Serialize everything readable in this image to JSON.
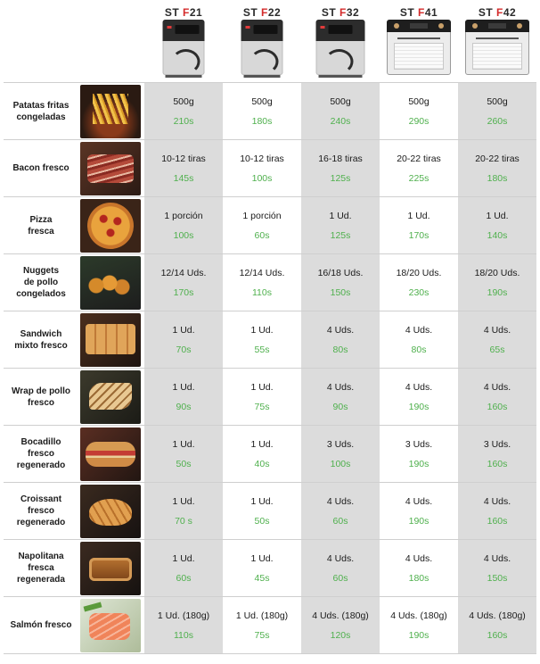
{
  "models": [
    {
      "prefix": "ST ",
      "mark": "F",
      "suffix": "21",
      "type": "dark"
    },
    {
      "prefix": "ST ",
      "mark": "F",
      "suffix": "22",
      "type": "dark"
    },
    {
      "prefix": "ST ",
      "mark": "F",
      "suffix": "32",
      "type": "dark"
    },
    {
      "prefix": "ST ",
      "mark": "F",
      "suffix": "41",
      "type": "steel"
    },
    {
      "prefix": "ST ",
      "mark": "F",
      "suffix": "42",
      "type": "steel"
    }
  ],
  "rows": [
    {
      "label": [
        "Patatas fritas",
        "congeladas"
      ],
      "image": "fries-photo",
      "cells": [
        [
          "500g",
          "210s"
        ],
        [
          "500g",
          "180s"
        ],
        [
          "500g",
          "240s"
        ],
        [
          "500g",
          "290s"
        ],
        [
          "500g",
          "260s"
        ]
      ]
    },
    {
      "label": [
        "Bacon fresco"
      ],
      "image": "bacon-photo",
      "cells": [
        [
          "10-12 tiras",
          "145s"
        ],
        [
          "10-12 tiras",
          "100s"
        ],
        [
          "16-18 tiras",
          "125s"
        ],
        [
          "20-22 tiras",
          "225s"
        ],
        [
          "20-22 tiras",
          "180s"
        ]
      ]
    },
    {
      "label": [
        "Pizza",
        "fresca"
      ],
      "image": "pizza-photo",
      "cells": [
        [
          "1 porción",
          "100s"
        ],
        [
          "1 porción",
          "60s"
        ],
        [
          "1 Ud.",
          "125s"
        ],
        [
          "1 Ud.",
          "170s"
        ],
        [
          "1 Ud.",
          "140s"
        ]
      ]
    },
    {
      "label": [
        "Nuggets",
        "de pollo",
        "congelados"
      ],
      "image": "nuggets-photo",
      "cells": [
        [
          "12/14 Uds.",
          "170s"
        ],
        [
          "12/14 Uds.",
          "110s"
        ],
        [
          "16/18 Uds.",
          "150s"
        ],
        [
          "18/20 Uds.",
          "230s"
        ],
        [
          "18/20 Uds.",
          "190s"
        ]
      ]
    },
    {
      "label": [
        "Sandwich",
        "mixto fresco"
      ],
      "image": "sandwich-photo",
      "cells": [
        [
          "1 Ud.",
          "70s"
        ],
        [
          "1 Ud.",
          "55s"
        ],
        [
          "4 Uds.",
          "80s"
        ],
        [
          "4 Uds.",
          "80s"
        ],
        [
          "4 Uds.",
          "65s"
        ]
      ]
    },
    {
      "label": [
        "Wrap de pollo",
        "fresco"
      ],
      "image": "wrap-photo",
      "cells": [
        [
          "1 Ud.",
          "90s"
        ],
        [
          "1 Ud.",
          "75s"
        ],
        [
          "4 Uds.",
          "90s"
        ],
        [
          "4 Uds.",
          "190s"
        ],
        [
          "4 Uds.",
          "160s"
        ]
      ]
    },
    {
      "label": [
        "Bocadillo",
        "fresco",
        "regenerado"
      ],
      "image": "bocadillo-photo",
      "cells": [
        [
          "1 Ud.",
          "50s"
        ],
        [
          "1 Ud.",
          "40s"
        ],
        [
          "3 Uds.",
          "100s"
        ],
        [
          "3 Uds.",
          "190s"
        ],
        [
          "3 Uds.",
          "160s"
        ]
      ]
    },
    {
      "label": [
        "Croissant",
        "fresco",
        "regenerado"
      ],
      "image": "croissant-photo",
      "cells": [
        [
          "1 Ud.",
          "70 s"
        ],
        [
          "1 Ud.",
          "50s"
        ],
        [
          "4 Uds.",
          "60s"
        ],
        [
          "4 Uds.",
          "190s"
        ],
        [
          "4 Uds.",
          "160s"
        ]
      ]
    },
    {
      "label": [
        "Napolitana",
        "fresca",
        "regenerada"
      ],
      "image": "napolitana-photo",
      "cells": [
        [
          "1 Ud.",
          "60s"
        ],
        [
          "1 Ud.",
          "45s"
        ],
        [
          "4 Uds.",
          "60s"
        ],
        [
          "4 Uds.",
          "180s"
        ],
        [
          "4 Uds.",
          "150s"
        ]
      ]
    },
    {
      "label": [
        "Salmón fresco"
      ],
      "image": "salmon-photo",
      "cells": [
        [
          "1 Ud. (180g)",
          "110s"
        ],
        [
          "1 Ud. (180g)",
          "75s"
        ],
        [
          "4 Uds. (180g)",
          "120s"
        ],
        [
          "4 Uds. (180g)",
          "190s"
        ],
        [
          "4 Uds. (180g)",
          "160s"
        ]
      ]
    }
  ],
  "colors": {
    "time_green": "#4fb04d",
    "model_red": "#d42b2b",
    "shade": "#dcdcdc"
  }
}
